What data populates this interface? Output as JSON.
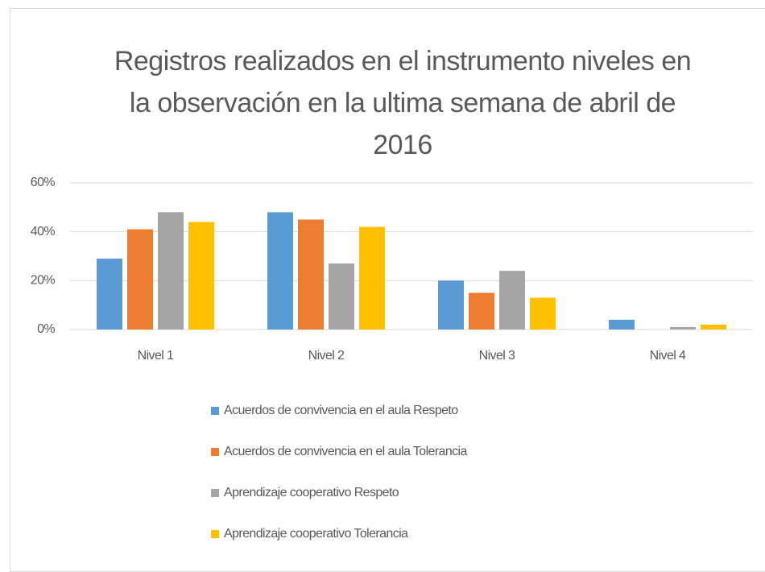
{
  "chart_data": {
    "type": "bar",
    "title": "Registros realizados en el instrumento niveles en la observación en la ultima semana de abril de 2016",
    "categories": [
      "Nivel 1",
      "Nivel 2",
      "Nivel 3",
      "Nivel 4"
    ],
    "series": [
      {
        "name": "Acuerdos de convivencia en el aula Respeto",
        "color": "#5b9bd5",
        "values": [
          29,
          48,
          20,
          4
        ]
      },
      {
        "name": "Acuerdos de convivencia en el aula Tolerancia",
        "color": "#ed7d31",
        "values": [
          41,
          45,
          15,
          0
        ]
      },
      {
        "name": "Aprendizaje cooperativo Respeto",
        "color": "#a5a5a5",
        "values": [
          48,
          27,
          24,
          1
        ]
      },
      {
        "name": "Aprendizaje cooperativo Tolerancia",
        "color": "#ffc000",
        "values": [
          44,
          42,
          13,
          2
        ]
      }
    ],
    "ylim": [
      0,
      60
    ],
    "yticks": [
      {
        "value": 0,
        "label": "0%"
      },
      {
        "value": 20,
        "label": "20%"
      },
      {
        "value": 40,
        "label": "40%"
      },
      {
        "value": 60,
        "label": "60%"
      }
    ],
    "grid": true,
    "legend": "bottom"
  }
}
